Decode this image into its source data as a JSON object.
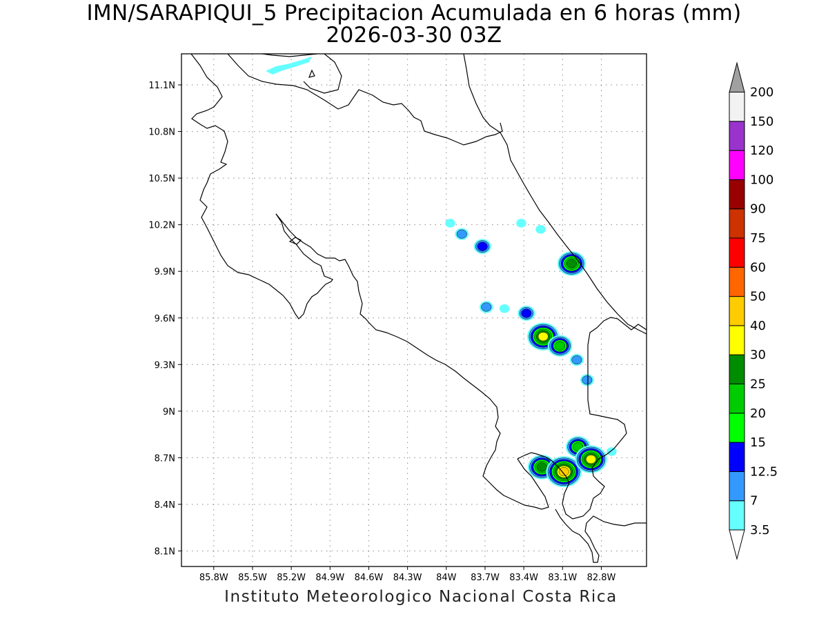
{
  "title": {
    "line1": "IMN/SARAPIQUI_5 Precipitacion Acumulada en 6 horas (mm)",
    "line2": "2026-03-30 03Z"
  },
  "footer": "Instituto Meteorologico Nacional Costa Rica",
  "map": {
    "lon_range": [
      -86.05,
      -82.45
    ],
    "lat_range": [
      8.0,
      11.3
    ],
    "lon_ticks": [
      {
        "value": -85.8,
        "label": "85.8W"
      },
      {
        "value": -85.5,
        "label": "85.5W"
      },
      {
        "value": -85.2,
        "label": "85.2W"
      },
      {
        "value": -84.9,
        "label": "84.9W"
      },
      {
        "value": -84.6,
        "label": "84.6W"
      },
      {
        "value": -84.3,
        "label": "84.3W"
      },
      {
        "value": -84.0,
        "label": "84W"
      },
      {
        "value": -83.7,
        "label": "83.7W"
      },
      {
        "value": -83.4,
        "label": "83.4W"
      },
      {
        "value": -83.1,
        "label": "83.1W"
      },
      {
        "value": -82.8,
        "label": "82.8W"
      }
    ],
    "lat_ticks": [
      {
        "value": 11.1,
        "label": "11.1N"
      },
      {
        "value": 10.8,
        "label": "10.8N"
      },
      {
        "value": 10.5,
        "label": "10.5N"
      },
      {
        "value": 10.2,
        "label": "10.2N"
      },
      {
        "value": 9.9,
        "label": "9.9N"
      },
      {
        "value": 9.6,
        "label": "9.6N"
      },
      {
        "value": 9.3,
        "label": "9.3N"
      },
      {
        "value": 9.0,
        "label": "9N"
      },
      {
        "value": 8.7,
        "label": "8.7N"
      },
      {
        "value": 8.4,
        "label": "8.4N"
      },
      {
        "value": 8.1,
        "label": "8.1N"
      }
    ],
    "grid": true
  },
  "colorbar": {
    "units": "mm",
    "levels": [
      {
        "label": "3.5",
        "color": "#66ffff"
      },
      {
        "label": "7",
        "color": "#3399ff"
      },
      {
        "label": "12.5",
        "color": "#0000ff"
      },
      {
        "label": "15",
        "color": "#00ff00"
      },
      {
        "label": "20",
        "color": "#00cc00"
      },
      {
        "label": "25",
        "color": "#008c00"
      },
      {
        "label": "30",
        "color": "#ffff00"
      },
      {
        "label": "40",
        "color": "#ffcc00"
      },
      {
        "label": "50",
        "color": "#ff6600"
      },
      {
        "label": "60",
        "color": "#ff0000"
      },
      {
        "label": "75",
        "color": "#cc3300"
      },
      {
        "label": "90",
        "color": "#990000"
      },
      {
        "label": "100",
        "color": "#ff00ff"
      },
      {
        "label": "120",
        "color": "#9933cc"
      },
      {
        "label": "150",
        "color": "#f2f2f2"
      },
      {
        "label": "200",
        "color": "#a0a0a0"
      }
    ]
  },
  "precip_cells": [
    {
      "lon": -83.97,
      "lat": 10.21,
      "category": 1
    },
    {
      "lon": -83.88,
      "lat": 10.14,
      "category": 2
    },
    {
      "lon": -83.72,
      "lat": 10.06,
      "category": 3
    },
    {
      "lon": -83.42,
      "lat": 10.21,
      "category": 1
    },
    {
      "lon": -83.27,
      "lat": 10.17,
      "category": 1
    },
    {
      "lon": -83.03,
      "lat": 9.95,
      "category": 6
    },
    {
      "lon": -83.69,
      "lat": 9.67,
      "category": 2
    },
    {
      "lon": -83.55,
      "lat": 9.66,
      "category": 1
    },
    {
      "lon": -83.38,
      "lat": 9.63,
      "category": 3
    },
    {
      "lon": -83.25,
      "lat": 9.48,
      "category": 7
    },
    {
      "lon": -83.12,
      "lat": 9.42,
      "category": 5
    },
    {
      "lon": -82.99,
      "lat": 9.33,
      "category": 2
    },
    {
      "lon": -82.91,
      "lat": 9.2,
      "category": 2
    },
    {
      "lon": -83.26,
      "lat": 8.64,
      "category": 6
    },
    {
      "lon": -83.09,
      "lat": 8.61,
      "category": 8
    },
    {
      "lon": -82.98,
      "lat": 8.77,
      "category": 5
    },
    {
      "lon": -82.88,
      "lat": 8.69,
      "category": 7
    },
    {
      "lon": -82.72,
      "lat": 8.74,
      "category": 1
    }
  ]
}
